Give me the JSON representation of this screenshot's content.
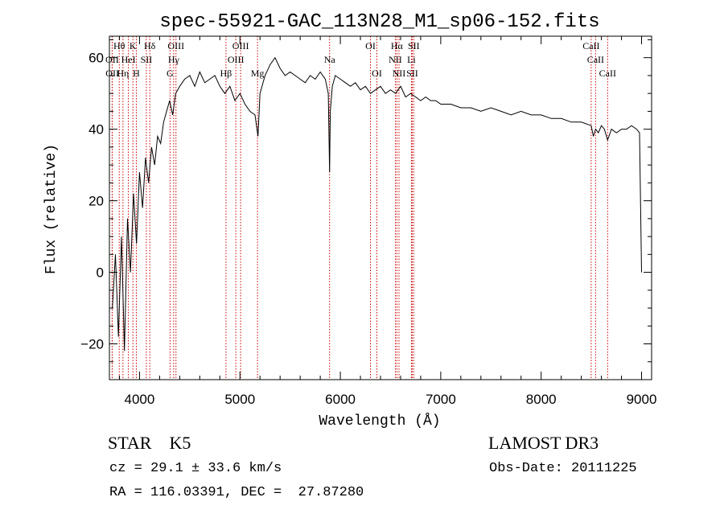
{
  "chart_data": {
    "type": "line",
    "title": "spec-55921-GAC_113N28_M1_sp06-152.fits",
    "xlabel": "Wavelength (Å)",
    "ylabel": "Flux (relative)",
    "xlim": [
      3700,
      9100
    ],
    "ylim": [
      -30,
      66
    ],
    "x_ticks": [
      4000,
      5000,
      6000,
      7000,
      8000,
      9000
    ],
    "x_tick_labels": [
      "4000",
      "5000",
      "6000",
      "7000",
      "8000",
      "9000"
    ],
    "y_ticks": [
      -20,
      0,
      20,
      40,
      60
    ],
    "y_tick_labels": [
      "−20",
      "0",
      "20",
      "40",
      "60"
    ],
    "line_color": "#000000",
    "marker_color": "#cc0000",
    "series": [
      {
        "name": "flux",
        "x": [
          3730,
          3760,
          3790,
          3820,
          3850,
          3880,
          3910,
          3940,
          3970,
          4000,
          4030,
          4060,
          4090,
          4120,
          4150,
          4180,
          4210,
          4240,
          4270,
          4300,
          4330,
          4360,
          4400,
          4450,
          4500,
          4550,
          4600,
          4650,
          4700,
          4750,
          4800,
          4850,
          4900,
          4950,
          5000,
          5050,
          5100,
          5150,
          5180,
          5200,
          5250,
          5300,
          5350,
          5400,
          5450,
          5500,
          5550,
          5600,
          5650,
          5700,
          5750,
          5800,
          5850,
          5880,
          5893,
          5900,
          5920,
          5950,
          6000,
          6050,
          6100,
          6150,
          6200,
          6250,
          6300,
          6350,
          6400,
          6450,
          6500,
          6550,
          6600,
          6650,
          6700,
          6750,
          6800,
          6850,
          6900,
          6950,
          7000,
          7100,
          7200,
          7300,
          7400,
          7500,
          7600,
          7700,
          7800,
          7900,
          8000,
          8100,
          8200,
          8300,
          8400,
          8498,
          8520,
          8542,
          8570,
          8600,
          8630,
          8662,
          8700,
          8750,
          8800,
          8850,
          8900,
          8950,
          8980,
          9000
        ],
        "values": [
          -10,
          5,
          -18,
          10,
          -22,
          15,
          0,
          22,
          8,
          28,
          18,
          32,
          25,
          35,
          30,
          38,
          36,
          42,
          45,
          48,
          44,
          50,
          52,
          54,
          55,
          52,
          56,
          53,
          54,
          55,
          52,
          50,
          52,
          48,
          50,
          47,
          45,
          44,
          38,
          50,
          55,
          58,
          60,
          57,
          55,
          56,
          55,
          54,
          53,
          55,
          54,
          56,
          54,
          50,
          28,
          45,
          52,
          55,
          54,
          53,
          52,
          53,
          51,
          52,
          50,
          51,
          52,
          50,
          51,
          50,
          52,
          49,
          50,
          49,
          48,
          49,
          48,
          48,
          47,
          47,
          46,
          46,
          45,
          46,
          45,
          44,
          45,
          44,
          44,
          43,
          43,
          42,
          42,
          41,
          38,
          40,
          39,
          41,
          40,
          37,
          40,
          39,
          40,
          40,
          41,
          40,
          39,
          0
        ]
      }
    ],
    "line_markers": [
      {
        "label": "Hθ",
        "x": 3798,
        "row": 1
      },
      {
        "label": "K",
        "x": 3934,
        "row": 1
      },
      {
        "label": "Hδ",
        "x": 4102,
        "row": 1
      },
      {
        "label": "OIII",
        "x": 4363,
        "row": 1
      },
      {
        "label": "OIII",
        "x": 5007,
        "row": 1
      },
      {
        "label": "OI",
        "x": 6300,
        "row": 1
      },
      {
        "label": "Hα",
        "x": 6563,
        "row": 1
      },
      {
        "label": "SII",
        "x": 6731,
        "row": 1
      },
      {
        "label": "CaII",
        "x": 8498,
        "row": 1
      },
      {
        "label": "OII",
        "x": 3727,
        "row": 2
      },
      {
        "label": "HeI",
        "x": 3889,
        "row": 2
      },
      {
        "label": "SII",
        "x": 4068,
        "row": 2
      },
      {
        "label": "Hγ",
        "x": 4340,
        "row": 2
      },
      {
        "label": "OIII",
        "x": 4959,
        "row": 2
      },
      {
        "label": "Na",
        "x": 5893,
        "row": 2
      },
      {
        "label": "NII",
        "x": 6548,
        "row": 2
      },
      {
        "label": "Li",
        "x": 6708,
        "row": 2
      },
      {
        "label": "CaII",
        "x": 8542,
        "row": 2
      },
      {
        "label": "OII",
        "x": 3729,
        "row": 3
      },
      {
        "label": "Hη",
        "x": 3835,
        "row": 3
      },
      {
        "label": "H",
        "x": 3968,
        "row": 3
      },
      {
        "label": "G",
        "x": 4304,
        "row": 3
      },
      {
        "label": "Hβ",
        "x": 4861,
        "row": 3
      },
      {
        "label": "Mg",
        "x": 5175,
        "row": 3
      },
      {
        "label": "OI",
        "x": 6364,
        "row": 3
      },
      {
        "label": "NII",
        "x": 6584,
        "row": 3
      },
      {
        "label": "SII",
        "x": 6716,
        "row": 3
      },
      {
        "label": "CaII",
        "x": 8662,
        "row": 3
      }
    ]
  },
  "info": {
    "object_class": "STAR    K5",
    "survey": "LAMOST DR3",
    "cz": "cz = 29.1 ± 33.6 km/s",
    "obs_date": "Obs-Date: 20111225",
    "radec": "RA = 116.03391, DEC =  27.87280"
  }
}
